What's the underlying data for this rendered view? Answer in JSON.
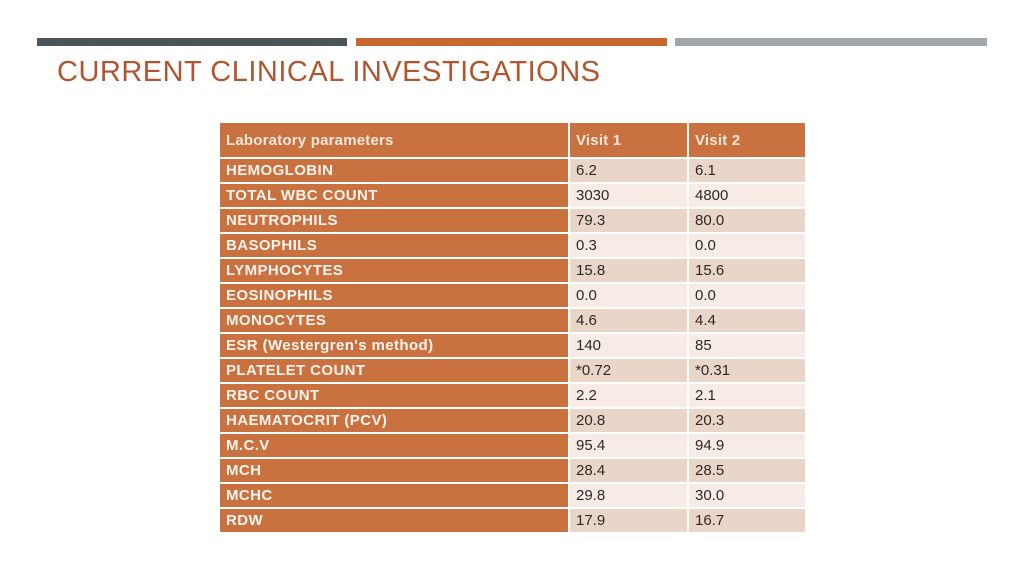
{
  "slide": {
    "title": "CURRENT CLINICAL INVESTIGATIONS"
  },
  "colors": {
    "bar_dark": "#4A555B",
    "bar_orange": "#C8682F",
    "bar_gray": "#9FA6AC",
    "title": "#B1552E",
    "table_orange": "#C9713F",
    "row_dark": "#EAD5C9",
    "row_light": "#F6EBE5",
    "header_text": "#F6E8DD",
    "label_text": "#FCF4EE",
    "value_text": "#2D2A27"
  },
  "table": {
    "columns": [
      "Laboratory parameters",
      "Visit 1",
      "Visit 2"
    ],
    "rows": [
      {
        "label": "HEMOGLOBIN",
        "visit1": "6.2",
        "visit2": "6.1"
      },
      {
        "label": "TOTAL WBC COUNT",
        "visit1": "3030",
        "visit2": "4800"
      },
      {
        "label": "NEUTROPHILS",
        "visit1": "79.3",
        "visit2": "80.0"
      },
      {
        "label": "BASOPHILS",
        "visit1": "0.3",
        "visit2": "0.0"
      },
      {
        "label": "LYMPHOCYTES",
        "visit1": "15.8",
        "visit2": "15.6"
      },
      {
        "label": "EOSINOPHILS",
        "visit1": "0.0",
        "visit2": "0.0"
      },
      {
        "label": "MONOCYTES",
        "visit1": "4.6",
        "visit2": "4.4"
      },
      {
        "label": "ESR (Westergren's method)",
        "visit1": "140",
        "visit2": "85"
      },
      {
        "label": "PLATELET COUNT",
        "visit1": "*0.72",
        "visit2": "*0.31"
      },
      {
        "label": "RBC COUNT",
        "visit1": "2.2",
        "visit2": "2.1"
      },
      {
        "label": "HAEMATOCRIT (PCV)",
        "visit1": "20.8",
        "visit2": "20.3"
      },
      {
        "label": "M.C.V",
        "visit1": "95.4",
        "visit2": "94.9"
      },
      {
        "label": "MCH",
        "visit1": "28.4",
        "visit2": "28.5"
      },
      {
        "label": "MCHC",
        "visit1": "29.8",
        "visit2": "30.0"
      },
      {
        "label": "RDW",
        "visit1": "17.9",
        "visit2": "16.7"
      }
    ]
  }
}
